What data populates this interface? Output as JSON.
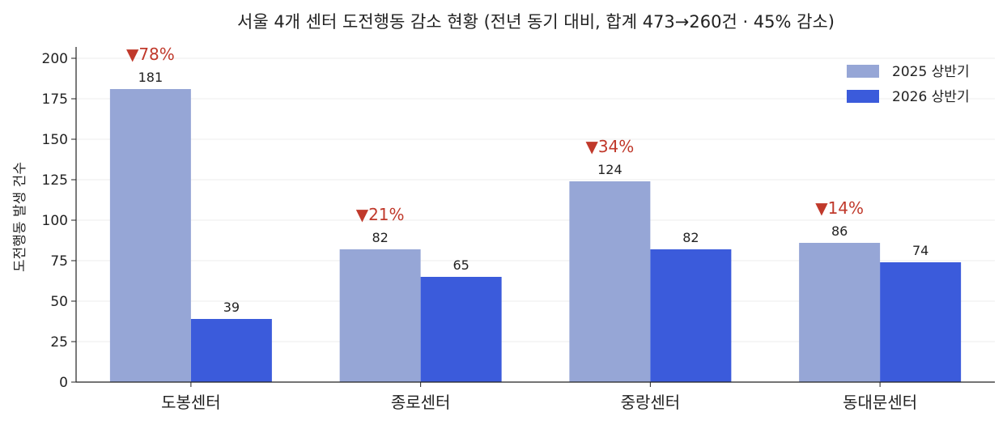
{
  "chart_data": {
    "type": "bar",
    "title": "서울 4개 센터 도전행동 감소 현황 (전년 동기 대비, 합계 473→260건 · 45% 감소)",
    "xlabel": "",
    "ylabel": "도전행동 발생 건수",
    "ylim": [
      0,
      205
    ],
    "yticks": [
      0,
      25,
      50,
      75,
      100,
      125,
      150,
      175,
      200
    ],
    "grid": "y",
    "legend_position": "top-right",
    "categories": [
      "도봉센터",
      "종로센터",
      "중랑센터",
      "동대문센터"
    ],
    "series": [
      {
        "name": "2025 상반기",
        "values": [
          181,
          82,
          124,
          86
        ],
        "color": "#96a6d6"
      },
      {
        "name": "2026 상반기",
        "values": [
          39,
          65,
          82,
          74
        ],
        "color": "#3b5bdb"
      }
    ],
    "reduction_labels": [
      "▼78%",
      "▼21%",
      "▼34%",
      "▼14%"
    ],
    "reduction_color": "#c0392b"
  }
}
